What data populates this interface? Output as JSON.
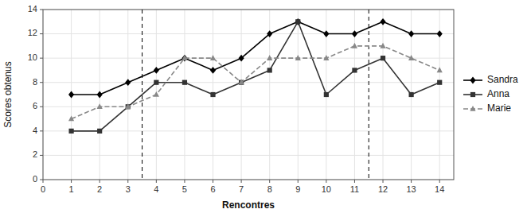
{
  "chart_data": {
    "type": "line",
    "xlabel": "Rencontres",
    "ylabel": "Scores obtenus",
    "x": [
      1,
      2,
      3,
      4,
      5,
      6,
      7,
      8,
      9,
      10,
      11,
      12,
      13,
      14
    ],
    "series": [
      {
        "name": "Sandra",
        "color": "#000000",
        "marker": "diamond",
        "line_style": "solid",
        "values": [
          7,
          7,
          8,
          9,
          10,
          9,
          10,
          12,
          13,
          12,
          12,
          13,
          12,
          12
        ]
      },
      {
        "name": "Anna",
        "color": "#333333",
        "marker": "square",
        "line_style": "solid",
        "values": [
          4,
          4,
          6,
          8,
          8,
          7,
          8,
          9,
          13,
          7,
          9,
          10,
          7,
          8
        ]
      },
      {
        "name": "Marie",
        "color": "#888888",
        "marker": "triangle",
        "line_style": "dashed",
        "values": [
          5,
          6,
          6,
          7,
          10,
          10,
          8,
          10,
          10,
          10,
          11,
          11,
          10,
          9
        ]
      }
    ],
    "vlines": [
      3.5,
      11.5
    ],
    "xlim": [
      0,
      14.5
    ],
    "ylim": [
      0,
      14
    ],
    "xticks": [
      0,
      1,
      2,
      3,
      4,
      5,
      6,
      7,
      8,
      9,
      10,
      11,
      12,
      13,
      14
    ],
    "yticks": [
      0,
      2,
      4,
      6,
      8,
      10,
      12,
      14
    ],
    "grid": true,
    "legend": "right"
  }
}
